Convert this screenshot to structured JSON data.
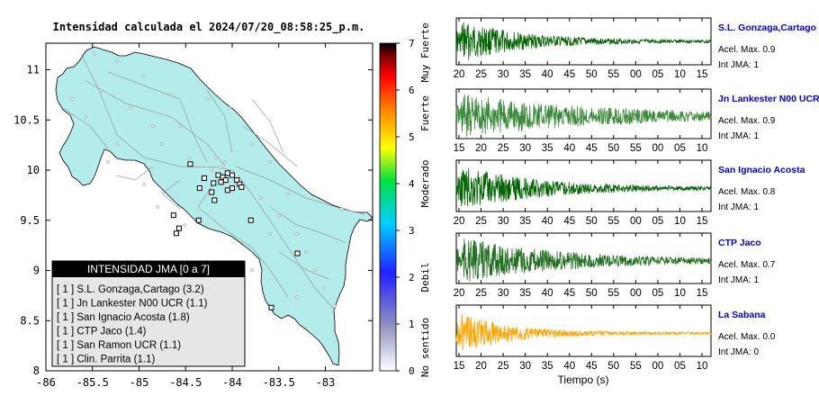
{
  "title": "Intensidad calculada el 2024/07/20_08:58:25_p.m.",
  "map": {
    "x_ticks": [
      "-86",
      "-85.5",
      "-85",
      "-84.5",
      "-84",
      "-83.5",
      "-83"
    ],
    "x_values": [
      -86,
      -85.5,
      -85,
      -84.5,
      -84,
      -83.5,
      -83
    ],
    "y_ticks": [
      "11",
      "10.5",
      "10",
      "9.5",
      "9",
      "8.5",
      "8"
    ],
    "y_values": [
      11,
      10.5,
      10,
      9.5,
      9,
      8.5,
      8
    ],
    "xlim": [
      -86,
      -82.6
    ],
    "ylim": [
      8,
      11.3
    ],
    "land_color": "#b4ecec",
    "station_marker": "square",
    "pins": [
      {
        "lon": -84.15,
        "lat": 9.95
      },
      {
        "lon": -84.1,
        "lat": 9.93
      },
      {
        "lon": -84.05,
        "lat": 9.97
      },
      {
        "lon": -84.0,
        "lat": 9.95
      },
      {
        "lon": -83.95,
        "lat": 9.9
      },
      {
        "lon": -83.92,
        "lat": 9.86
      },
      {
        "lon": -84.07,
        "lat": 9.9
      },
      {
        "lon": -84.12,
        "lat": 9.88
      },
      {
        "lon": -84.2,
        "lat": 9.87
      },
      {
        "lon": -84.3,
        "lat": 9.92
      },
      {
        "lon": -84.35,
        "lat": 9.82
      },
      {
        "lon": -84.22,
        "lat": 9.78
      },
      {
        "lon": -84.0,
        "lat": 9.82
      },
      {
        "lon": -84.05,
        "lat": 9.8
      },
      {
        "lon": -84.45,
        "lat": 10.06
      },
      {
        "lon": -83.9,
        "lat": 9.83
      },
      {
        "lon": -84.63,
        "lat": 9.55
      },
      {
        "lon": -84.57,
        "lat": 9.42
      },
      {
        "lon": -84.6,
        "lat": 9.37
      },
      {
        "lon": -84.36,
        "lat": 9.5
      },
      {
        "lon": -83.3,
        "lat": 9.17
      },
      {
        "lon": -83.58,
        "lat": 8.63
      },
      {
        "lon": -83.8,
        "lat": 9.5
      },
      {
        "lon": -84.19,
        "lat": 9.7
      }
    ]
  },
  "colorbar": {
    "ticks": [
      "0",
      "1",
      "2",
      "3",
      "4",
      "5",
      "6",
      "7"
    ],
    "range": [
      0,
      7
    ],
    "category_labels": [
      "No sentido",
      "Debil",
      "Moderado",
      "Fuerte",
      "Muy Fuerte"
    ],
    "category_centers": [
      0.5,
      2,
      4,
      5.5,
      6.8
    ],
    "colors": [
      "#ffffff",
      "#9090c0",
      "#2020ff",
      "#00d0ff",
      "#00e040",
      "#ffff00",
      "#ff8000",
      "#ff0000",
      "#800000",
      "#000000"
    ]
  },
  "legend": {
    "title": "INTENSIDAD JMA [0 a 7]",
    "items": [
      "[ 1 ]  S.L. Gonzaga,Cartago (3.2)",
      "[ 1 ]  Jn Lankester N00 UCR (1.1)",
      "[ 1 ]  San Ignacio Acosta (1.8)",
      "[ 1 ]  CTP Jaco (1.4)",
      "[ 1 ]  San Ramon UCR (1.1)",
      "[ 1 ]  Clin. Parrita (1.1)"
    ]
  },
  "chart_data": {
    "type": "line",
    "xlabel": "Tiempo (s)",
    "series": [
      {
        "name": "S.L. Gonzaga,Cartago",
        "accel_label": "Acel. Max. 0.9",
        "jma_label": "Int JMA: 1",
        "color": "#006400",
        "x_ticks": [
          "20",
          "25",
          "30",
          "35",
          "40",
          "45",
          "50",
          "55",
          "00",
          "05",
          "10",
          "15"
        ],
        "envelope_decay": 0.25
      },
      {
        "name": "Jn Lankester N00 UCR",
        "accel_label": "Acel. Max. 0.9",
        "jma_label": "Int JMA: 1",
        "color": "#3a8a3a",
        "x_ticks": [
          "15",
          "20",
          "25",
          "30",
          "35",
          "40",
          "45",
          "50",
          "55",
          "00",
          "05",
          "10"
        ],
        "envelope_decay": 0.55
      },
      {
        "name": "San Ignacio Acosta",
        "accel_label": "Acel. Max. 0.8",
        "jma_label": "Int JMA: 1",
        "color": "#006400",
        "x_ticks": [
          "20",
          "25",
          "30",
          "35",
          "40",
          "45",
          "50",
          "55",
          "00",
          "05",
          "10",
          "15"
        ],
        "envelope_decay": 0.3
      },
      {
        "name": "CTP Jaco",
        "accel_label": "Acel. Max. 0.7",
        "jma_label": "Int JMA: 1",
        "color": "#1e6e1e",
        "x_ticks": [
          "20",
          "25",
          "30",
          "35",
          "40",
          "45",
          "50",
          "55",
          "00",
          "05",
          "10",
          "15"
        ],
        "envelope_decay": 0.4
      },
      {
        "name": "La Sabana",
        "accel_label": "Acel. Max. 0.0",
        "jma_label": "Int JMA: 0",
        "color": "#ffa500",
        "x_ticks": [
          "15",
          "20",
          "25",
          "30",
          "35",
          "40",
          "45",
          "50",
          "55",
          "00",
          "05",
          "10"
        ],
        "envelope_decay": 0.2
      }
    ]
  },
  "colors": {
    "title_station": "#0000ee",
    "frame": "#000000",
    "road": "#999999",
    "legend_header_bg": "#000000"
  }
}
